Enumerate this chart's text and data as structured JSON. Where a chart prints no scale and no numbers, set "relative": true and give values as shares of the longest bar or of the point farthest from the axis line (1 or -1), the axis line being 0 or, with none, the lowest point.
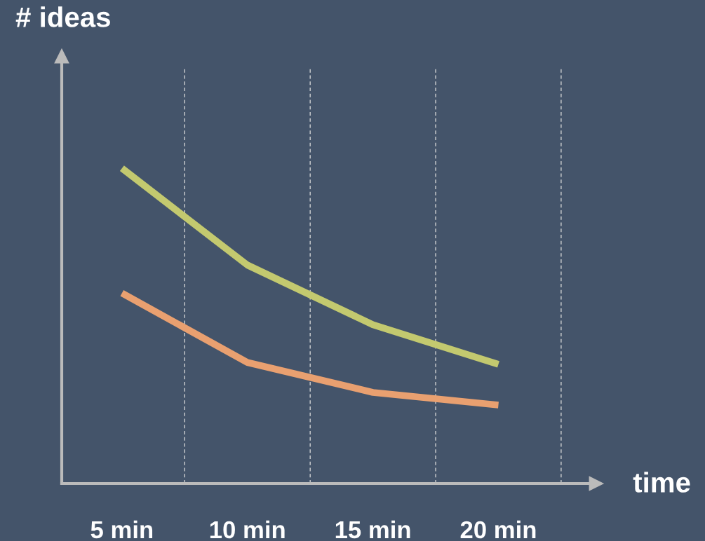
{
  "chart_data": {
    "type": "line",
    "relative": true,
    "ylabel": "# ideas",
    "xlabel": "time",
    "categories": [
      "5 min",
      "10 min",
      "15 min",
      "20 min"
    ],
    "series": [
      {
        "color": "#c3c96f",
        "values": [
          1,
          0.693,
          0.504,
          0.378
        ]
      },
      {
        "color": "#e9a070",
        "values": [
          0.604,
          0.384,
          0.289,
          0.249
        ]
      }
    ],
    "grid": "x",
    "legend": false,
    "marker": "none",
    "line_style": "solid"
  }
}
